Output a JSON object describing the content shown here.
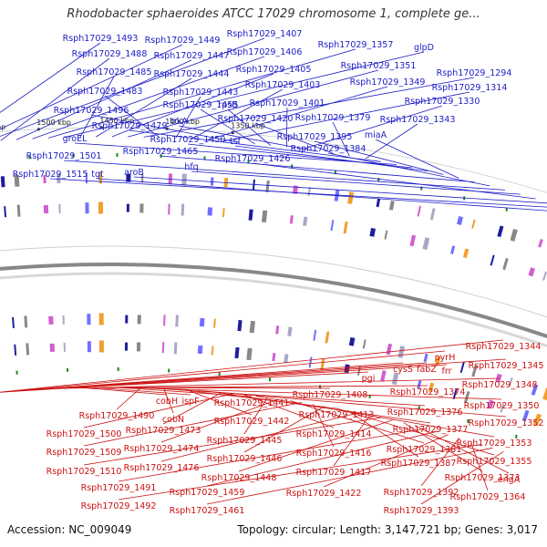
{
  "header": {
    "title": "Rhodobacter sphaeroides ATCC 17029 chromosome 1, complete ge..."
  },
  "footer": {
    "accession": "Accession: NC_009049",
    "summary": "Topology: circular; Length: 3,147,721 bp; Genes: 3,017"
  },
  "map": {
    "colors": {
      "forward_label": "#1c1cc8",
      "reverse_label": "#cc1010",
      "forward_arrow": "#1a1aff",
      "reverse_arrow": "#ee1010",
      "backbone": "#888888",
      "ticks": "#222222"
    },
    "scale_ticks": [
      "1550 kbp",
      "1500 kbp",
      "1450 kbp",
      "1400 kbp",
      "1350 kbp"
    ],
    "forward_labels": [
      "Rsph17029_1493",
      "Rsph17029_1449",
      "Rsph17029_1407",
      "Rsph17029_1488",
      "Rsph17029_1447",
      "Rsph17029_1406",
      "Rsph17029_1357",
      "glpD",
      "Rsph17029_1485",
      "Rsph17029_1444",
      "Rsph17029_1405",
      "Rsph17029_1351",
      "Rsph17029_1294",
      "Rsph17029_1483",
      "Rsph17029_1443",
      "Rsph17029_1403",
      "Rsph17029_1349",
      "Rsph17029_1314",
      "Rsph17029_1496",
      "Rsph17029_1455",
      "rpsB",
      "Rsph17029_1401",
      "Rsph17029_1330",
      "trkA",
      "Rsph17029_1420",
      "Rsph17029_1379",
      "Rsph17029_1343",
      "Rsph17029_1479",
      "groEL",
      "Rsph17029_1450",
      "tsf",
      "Rsph17029_1395",
      "miaA",
      "Rsph17029_1465",
      "Rsph17029_1384",
      "Rsph17029_1501",
      "hfq",
      "Rsph17029_1426",
      "aroB",
      "Rsph17029_1515",
      "tgt"
    ],
    "reverse_labels": [
      "pyrH",
      "Rsph17029_1344",
      "frr",
      "Rsph17029_1345",
      "cysS",
      "fabZ",
      "pgi",
      "Rsph17029_1348",
      "Rsph17029_1374",
      "cobH",
      "ispF",
      "Rsph17029_1408",
      "Rsph17029_1441",
      "Rsph17029_1350",
      "Rsph17029_1490",
      "Rsph17029_1376",
      "cobN",
      "Rsph17029_1413",
      "Rsph17029_1442",
      "Rsph17029_1352",
      "Rsph17029_1377",
      "Rsph17029_1473",
      "Rsph17029_1500",
      "Rsph17029_1414",
      "Rsph17029_1353",
      "Rsph17029_1445",
      "Rsph17029_1474",
      "Rsph17029_1381",
      "Rsph17029_1509",
      "Rsph17029_1416",
      "Rsph17029_1446",
      "Rsph17029_1355",
      "Rsph17029_1387",
      "Rsph17029_1476",
      "Rsph17029_1417",
      "Rsph17029_1510",
      "Rsph17029_1448",
      "Rsph17029_1373",
      "engA",
      "Rsph17029_1491",
      "Rsph17029_1459",
      "Rsph17029_1422",
      "Rsph17029_1392",
      "Rsph17029_1364",
      "Rsph17029_1492",
      "Rsph17029_1461",
      "Rsph17029_1393"
    ]
  }
}
